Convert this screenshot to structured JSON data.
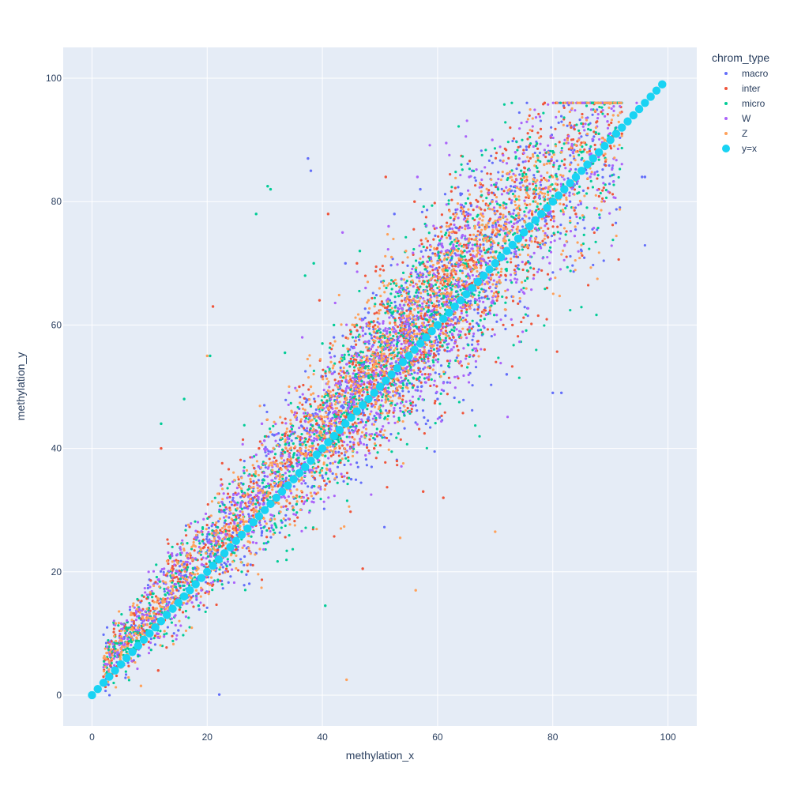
{
  "chart_data": {
    "type": "scatter",
    "xlabel": "methylation_x",
    "ylabel": "methylation_y",
    "xlim": [
      -5,
      105
    ],
    "ylim": [
      -5,
      105
    ],
    "xticks": [
      0,
      20,
      40,
      60,
      80,
      100
    ],
    "yticks": [
      0,
      20,
      40,
      60,
      80,
      100
    ],
    "grid": true,
    "plot_background": "#e5ecf6",
    "grid_color": "#ffffff",
    "legend": {
      "title": "chrom_type",
      "position": "top-right outside"
    },
    "series": [
      {
        "name": "macro",
        "color": "#636efa",
        "draw_order": 1,
        "points": [
          [
            22.1,
            0.1
          ],
          [
            1.5,
            2.0
          ],
          [
            3.2,
            5.1
          ],
          [
            8.0,
            6.5
          ],
          [
            10.5,
            12.0
          ],
          [
            15.0,
            10.5
          ],
          [
            18.0,
            20.5
          ],
          [
            22.5,
            18.5
          ],
          [
            25.0,
            29.0
          ],
          [
            28.5,
            23.0
          ],
          [
            30.0,
            35.5
          ],
          [
            33.0,
            28.0
          ],
          [
            35.5,
            45.0
          ],
          [
            37.5,
            87.0
          ],
          [
            38.0,
            85.0
          ],
          [
            40.5,
            40.0
          ],
          [
            42.0,
            58.0
          ],
          [
            44.0,
            70.0
          ],
          [
            45.0,
            35.0
          ],
          [
            48.0,
            62.0
          ],
          [
            50.0,
            45.0
          ],
          [
            52.5,
            78.0
          ],
          [
            55.0,
            52.0
          ],
          [
            57.0,
            82.0
          ],
          [
            58.5,
            60.0
          ],
          [
            60.0,
            48.0
          ],
          [
            62.0,
            72.0
          ],
          [
            64.0,
            58.0
          ],
          [
            66.0,
            85.0
          ],
          [
            68.0,
            62.0
          ],
          [
            70.0,
            78.0
          ],
          [
            72.0,
            52.0
          ],
          [
            74.0,
            86.0
          ],
          [
            76.0,
            70.0
          ],
          [
            78.0,
            82.0
          ],
          [
            80.0,
            49.0
          ],
          [
            81.5,
            49.0
          ],
          [
            83.0,
            80.0
          ],
          [
            85.0,
            72.0
          ],
          [
            87.0,
            90.0
          ],
          [
            89.0,
            86.0
          ],
          [
            91.0,
            92.0
          ],
          [
            95.5,
            84.0
          ],
          [
            96.0,
            84.0
          ]
        ]
      },
      {
        "name": "inter",
        "color": "#ef553b",
        "draw_order": 2,
        "points": [
          [
            2.0,
            3.0
          ],
          [
            7.0,
            5.5
          ],
          [
            11.5,
            4.0
          ],
          [
            12.0,
            40.0
          ],
          [
            14.0,
            18.5
          ],
          [
            19.5,
            24.0
          ],
          [
            21.0,
            63.0
          ],
          [
            24.5,
            27.0
          ],
          [
            29.0,
            40.0
          ],
          [
            32.0,
            38.0
          ],
          [
            36.0,
            50.0
          ],
          [
            39.5,
            64.0
          ],
          [
            41.0,
            78.0
          ],
          [
            43.0,
            54.0
          ],
          [
            46.0,
            70.0
          ],
          [
            47.0,
            20.5
          ],
          [
            49.0,
            40.0
          ],
          [
            51.0,
            84.0
          ],
          [
            54.0,
            62.0
          ],
          [
            56.0,
            80.0
          ],
          [
            57.5,
            33.0
          ],
          [
            59.0,
            66.0
          ],
          [
            61.0,
            32.0
          ],
          [
            63.0,
            75.0
          ],
          [
            65.0,
            55.0
          ],
          [
            67.0,
            80.0
          ],
          [
            69.0,
            66.0
          ],
          [
            71.0,
            76.0
          ],
          [
            73.0,
            60.0
          ],
          [
            75.0,
            84.0
          ],
          [
            77.0,
            74.0
          ],
          [
            79.0,
            66.0
          ],
          [
            82.0,
            86.0
          ],
          [
            84.0,
            78.0
          ],
          [
            86.0,
            88.0
          ],
          [
            88.0,
            82.0
          ],
          [
            90.0,
            89.0
          ],
          [
            92.0,
            91.0
          ]
        ]
      },
      {
        "name": "micro",
        "color": "#00cc96",
        "draw_order": 3,
        "points": [
          [
            4.0,
            9.5
          ],
          [
            6.0,
            7.0
          ],
          [
            9.5,
            10.5
          ],
          [
            12.0,
            44.0
          ],
          [
            13.5,
            22.5
          ],
          [
            16.0,
            48.0
          ],
          [
            18.5,
            14.5
          ],
          [
            20.5,
            55.0
          ],
          [
            23.0,
            30.0
          ],
          [
            26.0,
            20.0
          ],
          [
            28.5,
            78.0
          ],
          [
            30.5,
            82.5
          ],
          [
            31.0,
            82.0
          ],
          [
            33.5,
            55.5
          ],
          [
            35.0,
            30.0
          ],
          [
            37.0,
            68.0
          ],
          [
            38.5,
            70.0
          ],
          [
            40.0,
            57.0
          ],
          [
            40.5,
            14.5
          ],
          [
            42.0,
            60.0
          ],
          [
            44.5,
            38.0
          ],
          [
            46.5,
            72.0
          ],
          [
            48.5,
            60.5
          ],
          [
            50.5,
            52.5
          ],
          [
            52.0,
            62.0
          ],
          [
            53.0,
            55.0
          ],
          [
            55.5,
            67.0
          ],
          [
            58.0,
            76.0
          ],
          [
            60.0,
            66.0
          ],
          [
            62.5,
            72.0
          ],
          [
            64.5,
            70.0
          ],
          [
            66.5,
            73.0
          ],
          [
            68.5,
            76.0
          ],
          [
            70.5,
            82.0
          ],
          [
            72.5,
            78.0
          ],
          [
            74.5,
            85.0
          ],
          [
            77.0,
            80.0
          ],
          [
            79.5,
            84.0
          ],
          [
            82.0,
            82.0
          ],
          [
            85.0,
            88.0
          ],
          [
            88.0,
            91.0
          ]
        ]
      },
      {
        "name": "W",
        "color": "#ab63fa",
        "draw_order": 4,
        "points": [
          [
            5.0,
            4.5
          ],
          [
            9.0,
            13.0
          ],
          [
            12.5,
            9.5
          ],
          [
            16.5,
            23.0
          ],
          [
            19.0,
            17.0
          ],
          [
            23.5,
            32.0
          ],
          [
            27.0,
            26.5
          ],
          [
            29.5,
            44.0
          ],
          [
            34.0,
            36.5
          ],
          [
            36.5,
            58.0
          ],
          [
            39.0,
            45.5
          ],
          [
            43.5,
            75.0
          ],
          [
            45.5,
            47.5
          ],
          [
            47.5,
            66.0
          ],
          [
            49.5,
            55.0
          ],
          [
            51.5,
            76.0
          ],
          [
            53.5,
            60.0
          ],
          [
            56.5,
            84.0
          ],
          [
            59.5,
            68.0
          ],
          [
            61.5,
            89.5
          ],
          [
            63.5,
            64.0
          ],
          [
            65.5,
            84.0
          ],
          [
            67.5,
            70.0
          ],
          [
            69.5,
            90.0
          ],
          [
            71.5,
            74.0
          ],
          [
            73.5,
            88.0
          ],
          [
            75.5,
            76.0
          ],
          [
            78.5,
            86.0
          ],
          [
            80.5,
            80.0
          ],
          [
            83.5,
            88.0
          ],
          [
            86.5,
            84.0
          ],
          [
            89.5,
            93.0
          ]
        ]
      },
      {
        "name": "Z",
        "color": "#ffa15a",
        "draw_order": 5,
        "points": [
          [
            3.0,
            3.5
          ],
          [
            7.5,
            10.0
          ],
          [
            8.5,
            1.5
          ],
          [
            11.0,
            14.0
          ],
          [
            14.5,
            16.0
          ],
          [
            17.5,
            22.0
          ],
          [
            20.0,
            55.0
          ],
          [
            21.5,
            26.0
          ],
          [
            24.0,
            30.0
          ],
          [
            27.5,
            35.0
          ],
          [
            31.5,
            40.0
          ],
          [
            34.5,
            44.0
          ],
          [
            38.0,
            50.0
          ],
          [
            41.5,
            54.0
          ],
          [
            44.2,
            2.5
          ],
          [
            45.5,
            60.0
          ],
          [
            48.0,
            64.0
          ],
          [
            50.0,
            68.0
          ],
          [
            52.0,
            71.0
          ],
          [
            53.5,
            25.5
          ],
          [
            54.5,
            72.0
          ],
          [
            56.0,
            62.5
          ],
          [
            56.2,
            17.0
          ],
          [
            58.0,
            74.0
          ],
          [
            60.0,
            70.0
          ],
          [
            62.0,
            76.0
          ],
          [
            63.5,
            72.0
          ],
          [
            64.5,
            78.0
          ],
          [
            65.5,
            74.0
          ],
          [
            66.5,
            76.0
          ],
          [
            67.0,
            72.5
          ],
          [
            67.5,
            78.0
          ],
          [
            68.5,
            74.0
          ],
          [
            69.5,
            80.0
          ],
          [
            70.0,
            26.5
          ],
          [
            71.0,
            76.0
          ],
          [
            72.5,
            82.0
          ],
          [
            74.0,
            78.0
          ],
          [
            75.5,
            84.0
          ],
          [
            77.0,
            80.0
          ],
          [
            78.5,
            86.0
          ],
          [
            80.0,
            84.0
          ],
          [
            81.5,
            88.0
          ],
          [
            83.0,
            86.0
          ],
          [
            84.5,
            90.0
          ],
          [
            86.0,
            88.0
          ],
          [
            87.5,
            92.0
          ],
          [
            89.0,
            90.0
          ],
          [
            90.5,
            94.0
          ]
        ]
      },
      {
        "name": "y=x",
        "color": "#19d3f3",
        "draw_order": 6,
        "large_markers": true,
        "x_range": [
          0,
          99
        ],
        "step": 1
      }
    ]
  }
}
